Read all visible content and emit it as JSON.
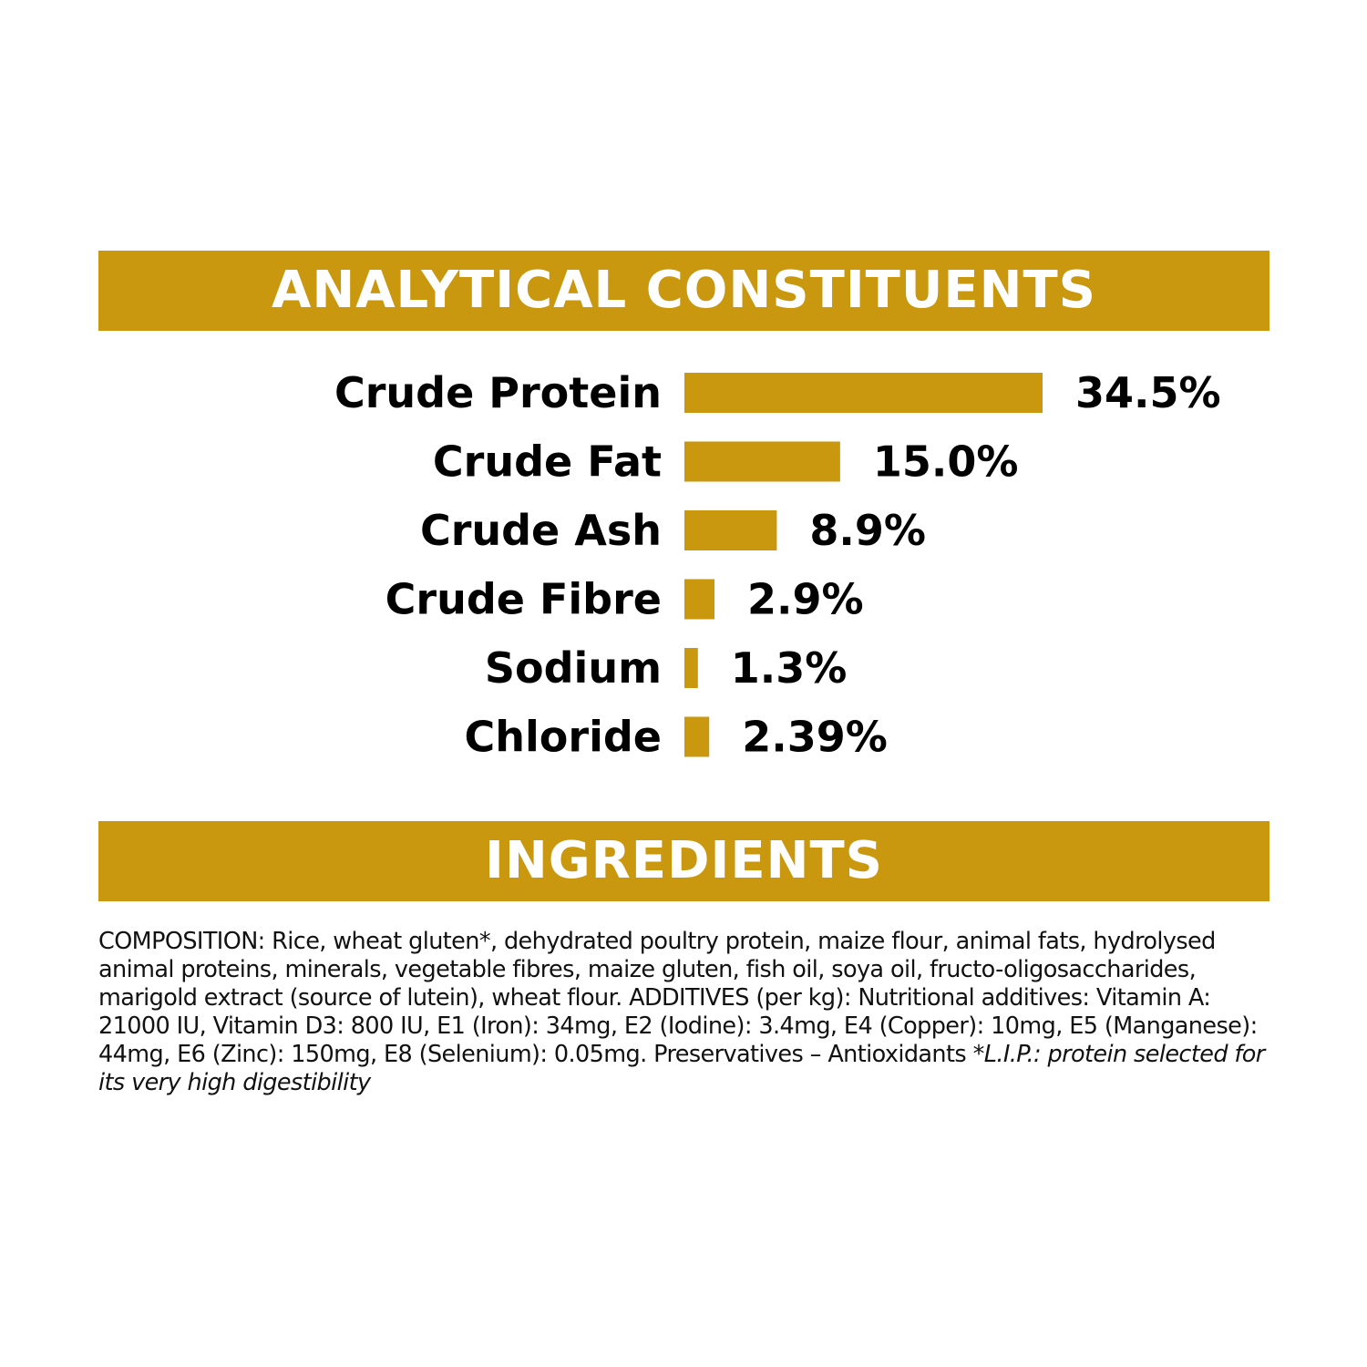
{
  "colors": {
    "accent": "#c9980e",
    "text": "#000000",
    "background": "#ffffff"
  },
  "analytical": {
    "title": "ANALYTICAL CONSTITUENTS"
  },
  "ingredients": {
    "title": "INGREDIENTS",
    "composition": "COMPOSITION: Rice, wheat gluten*, dehydrated poultry protein, maize flour, animal fats, hydrolysed animal proteins, minerals, vegetable fibres, maize gluten, fish oil, soya oil, fructo-oligosaccharides, marigold extract (source of lutein), wheat flour. ADDITIVES (per kg): Nutritional additives: Vitamin A: 21000 IU, Vitamin D3: 800 IU, E1 (Iron): 34mg, E2 (Iodine): 3.4mg, E4 (Copper): 10mg, E5 (Manganese): 44mg, E6 (Zinc): 150mg, E8 (Selenium): 0.05mg. Preservatives – Antioxidants",
    "footnote": "*L.I.P.: protein selected for its very high digestibility"
  },
  "chart_data": {
    "type": "bar",
    "orientation": "horizontal",
    "title": "",
    "categories": [
      "Crude Protein",
      "Crude Fat",
      "Crude Ash",
      "Crude Fibre",
      "Sodium",
      "Chloride"
    ],
    "values": [
      34.5,
      15.0,
      8.9,
      2.9,
      1.3,
      2.39
    ],
    "value_labels": [
      "34.5%",
      "15.0%",
      "8.9%",
      "2.9%",
      "1.3%",
      "2.39%"
    ],
    "unit": "%",
    "xlim": [
      0,
      34.5
    ],
    "grid": false,
    "legend": "none"
  }
}
